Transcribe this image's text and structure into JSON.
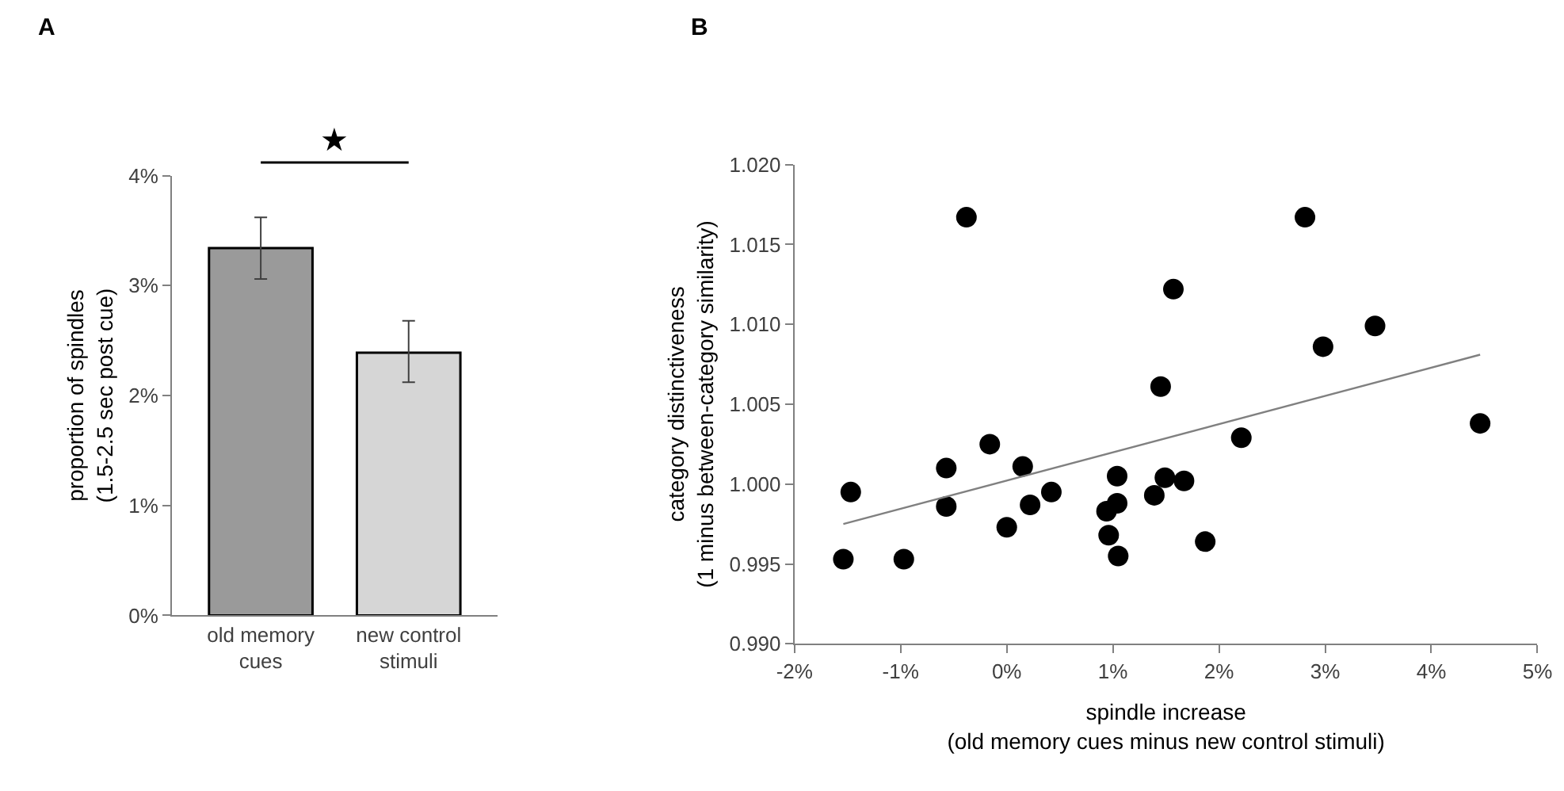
{
  "chart_data": [
    {
      "type": "bar",
      "title": "A",
      "ylabel": "proportion of spindles\n(1.5-2.5 sec post cue)",
      "categories": [
        "old memory cues",
        "new control stimuli"
      ],
      "values": [
        3.34,
        2.39
      ],
      "colors": [
        "#9a9a9a",
        "#d6d6d6"
      ],
      "errors": [
        [
          3.06,
          3.62
        ],
        [
          2.12,
          2.68
        ]
      ],
      "ylim": [
        0,
        4
      ],
      "yticks": [
        {
          "value": 0,
          "label": "0%"
        },
        {
          "value": 1,
          "label": "1%"
        },
        {
          "value": 2,
          "label": "2%"
        },
        {
          "value": 3,
          "label": "3%"
        },
        {
          "value": 4,
          "label": "4%"
        }
      ],
      "annotations": [
        "★"
      ]
    },
    {
      "type": "scatter",
      "title": "B",
      "xlabel": "spindle increase\n(old memory cues minus new control stimuli)",
      "ylabel": "category distinctiveness\n(1 minus between-category similarity)",
      "series": [
        {
          "type": "scatter",
          "marker": "circle",
          "color": "#000000",
          "x": [
            -1.54,
            -1.47,
            -0.97,
            -0.57,
            -0.57,
            -0.38,
            -0.16,
            0.0,
            0.15,
            0.22,
            0.42,
            0.94,
            1.04,
            1.04,
            0.96,
            1.05,
            1.39,
            1.45,
            1.49,
            1.57,
            1.67,
            1.87,
            2.21,
            2.81,
            2.98,
            3.47,
            4.46
          ],
          "values": [
            0.9953,
            0.9995,
            0.9953,
            1.001,
            0.9986,
            1.0167,
            1.0025,
            0.9973,
            1.0011,
            0.9987,
            0.9995,
            0.9983,
            0.9988,
            1.0005,
            0.9968,
            0.9955,
            0.9993,
            1.0061,
            1.0004,
            1.0122,
            1.0002,
            0.9964,
            1.0029,
            1.0167,
            1.0086,
            1.0099,
            1.0038
          ]
        },
        {
          "type": "line",
          "color": "#808080",
          "x": [
            -1.54,
            4.46
          ],
          "values": [
            0.9975,
            1.0081
          ]
        }
      ],
      "xlim": [
        -2,
        5
      ],
      "xticks": [
        {
          "value": -2,
          "label": "-2%"
        },
        {
          "value": -1,
          "label": "-1%"
        },
        {
          "value": 0,
          "label": "0%"
        },
        {
          "value": 1,
          "label": "1%"
        },
        {
          "value": 2,
          "label": "2%"
        },
        {
          "value": 3,
          "label": "3%"
        },
        {
          "value": 4,
          "label": "4%"
        },
        {
          "value": 5,
          "label": "5%"
        }
      ],
      "ylim": [
        0.99,
        1.02
      ],
      "yticks": [
        {
          "value": 0.99,
          "label": "0.990"
        },
        {
          "value": 0.995,
          "label": "0.995"
        },
        {
          "value": 1.0,
          "label": "1.000"
        },
        {
          "value": 1.005,
          "label": "1.005"
        },
        {
          "value": 1.01,
          "label": "1.010"
        },
        {
          "value": 1.015,
          "label": "1.015"
        },
        {
          "value": 1.02,
          "label": "1.020"
        }
      ]
    }
  ]
}
